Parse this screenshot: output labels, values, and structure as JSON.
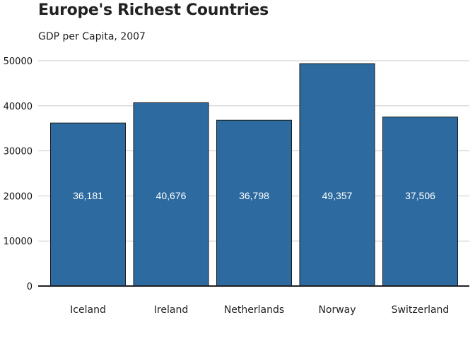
{
  "chart_data": {
    "type": "bar",
    "title": "Europe's Richest Countries",
    "subtitle": "GDP per Capita, 2007",
    "categories": [
      "Iceland",
      "Ireland",
      "Netherlands",
      "Norway",
      "Switzerland"
    ],
    "values": [
      36181,
      40676,
      36798,
      49357,
      37506
    ],
    "value_labels": [
      "36,181",
      "40,676",
      "36,798",
      "49,357",
      "37,506"
    ],
    "yticks": [
      0,
      10000,
      20000,
      30000,
      40000,
      50000
    ],
    "ylim": [
      0,
      50000
    ],
    "xlabel": "",
    "ylabel": "",
    "grid": true,
    "bar_color": "#2c6aa0",
    "bar_edge_color": "#1a1a1a",
    "grid_color": "#cccccc",
    "axis_color": "#222222"
  }
}
